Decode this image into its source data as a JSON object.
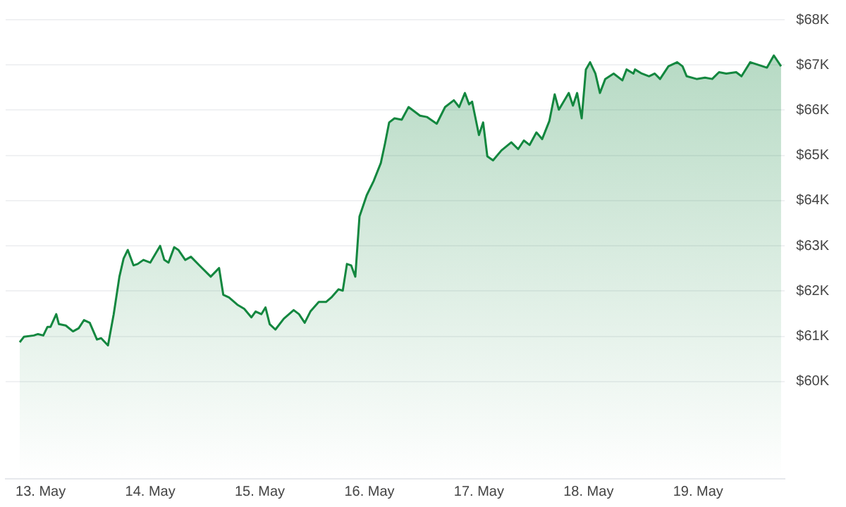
{
  "chart_data": {
    "type": "area",
    "grid": "y",
    "legend": false,
    "marker": "none",
    "xlim": [
      "--05-12T16:20",
      "--05-19T19:00"
    ],
    "xticks": [
      {
        "value": "--05-13",
        "label": "13. May"
      },
      {
        "value": "--05-14",
        "label": "14. May"
      },
      {
        "value": "--05-15",
        "label": "15. May"
      },
      {
        "value": "--05-16",
        "label": "16. May"
      },
      {
        "value": "--05-17",
        "label": "17. May"
      },
      {
        "value": "--05-18",
        "label": "18. May"
      },
      {
        "value": "--05-19",
        "label": "19. May"
      }
    ],
    "ylim": [
      57850,
      68000
    ],
    "yticks": [
      {
        "value": 60000,
        "label": "$60K"
      },
      {
        "value": 61000,
        "label": "$61K"
      },
      {
        "value": 62000,
        "label": "$62K"
      },
      {
        "value": 63000,
        "label": "$63K"
      },
      {
        "value": 64000,
        "label": "$64K"
      },
      {
        "value": 65000,
        "label": "$65K"
      },
      {
        "value": 66000,
        "label": "$66K"
      },
      {
        "value": 67000,
        "label": "$67K"
      },
      {
        "value": 68000,
        "label": "$68K"
      }
    ],
    "series": [
      {
        "color": "#13873f",
        "x": [
          "--05-12T19:25",
          "--05-12T20:20",
          "--05-12T22:30",
          "--05-12T23:25",
          "--05-13T00:35",
          "--05-13T01:30",
          "--05-13T02:10",
          "--05-13T03:25",
          "--05-13T04:00",
          "--05-13T05:30",
          "--05-13T07:05",
          "--05-13T08:20",
          "--05-13T09:30",
          "--05-13T10:45",
          "--05-13T12:20",
          "--05-13T13:15",
          "--05-13T14:45",
          "--05-13T16:00",
          "--05-13T17:15",
          "--05-13T18:10",
          "--05-13T19:05",
          "--05-13T20:20",
          "--05-13T21:15",
          "--05-13T22:30",
          "--05-14T00:00",
          "--05-14T02:10",
          "--05-14T03:05",
          "--05-14T04:00",
          "--05-14T05:15",
          "--05-14T06:10",
          "--05-14T07:40",
          "--05-14T08:55",
          "--05-14T10:45",
          "--05-14T13:15",
          "--05-14T15:05",
          "--05-14T16:00",
          "--05-14T17:15",
          "--05-14T19:05",
          "--05-14T20:35",
          "--05-14T22:10",
          "--05-14T23:05",
          "--05-15T00:20",
          "--05-15T01:15",
          "--05-15T02:10",
          "--05-15T03:25",
          "--05-15T05:15",
          "--05-15T07:25",
          "--05-15T08:35",
          "--05-15T09:50",
          "--05-15T11:05",
          "--05-15T12:55",
          "--05-15T14:30",
          "--05-15T15:40",
          "--05-15T17:15",
          "--05-15T18:10",
          "--05-15T19:05",
          "--05-15T20:00",
          "--05-15T20:55",
          "--05-15T21:50",
          "--05-15T23:25",
          "--05-16T00:55",
          "--05-16T02:30",
          "--05-16T03:25",
          "--05-16T04:20",
          "--05-16T05:30",
          "--05-16T07:05",
          "--05-16T08:35",
          "--05-16T11:05",
          "--05-16T12:35",
          "--05-16T14:45",
          "--05-16T16:35",
          "--05-16T18:30",
          "--05-16T19:40",
          "--05-16T20:55",
          "--05-16T21:50",
          "--05-16T22:30",
          "--05-17T00:00",
          "--05-17T00:55",
          "--05-17T01:50",
          "--05-17T03:05",
          "--05-17T04:55",
          "--05-17T07:05",
          "--05-17T08:35",
          "--05-17T09:50",
          "--05-17T11:05",
          "--05-17T12:35",
          "--05-17T13:50",
          "--05-17T15:25",
          "--05-17T16:35",
          "--05-17T17:30",
          "--05-17T19:40",
          "--05-17T20:35",
          "--05-17T21:30",
          "--05-17T22:30",
          "--05-17T23:25",
          "--05-18T00:20",
          "--05-18T01:30",
          "--05-18T02:30",
          "--05-18T03:40",
          "--05-18T05:30",
          "--05-18T07:25",
          "--05-18T08:20",
          "--05-18T09:50",
          "--05-18T10:10",
          "--05-18T11:40",
          "--05-18T13:15",
          "--05-18T14:30",
          "--05-18T15:40",
          "--05-18T17:30",
          "--05-18T19:25",
          "--05-18T20:35",
          "--05-18T21:30",
          "--05-18T23:40",
          "--05-19T01:30",
          "--05-19T03:05",
          "--05-19T04:35",
          "--05-19T06:10",
          "--05-19T08:20",
          "--05-19T09:30",
          "--05-19T11:25",
          "--05-19T15:05",
          "--05-19T16:35",
          "--05-19T18:10"
        ],
        "values": [
          60870,
          60990,
          61020,
          61050,
          61020,
          61210,
          61210,
          61490,
          61270,
          61240,
          61110,
          61180,
          61360,
          61300,
          60930,
          60960,
          60800,
          61490,
          62320,
          62720,
          62910,
          62570,
          62600,
          62690,
          62630,
          63000,
          62690,
          62630,
          62970,
          62910,
          62690,
          62760,
          62570,
          62320,
          62510,
          61920,
          61860,
          61700,
          61610,
          61420,
          61550,
          61490,
          61640,
          61270,
          61150,
          61390,
          61580,
          61490,
          61300,
          61550,
          61760,
          61760,
          61860,
          62040,
          62010,
          62600,
          62570,
          62320,
          63650,
          64120,
          64430,
          64830,
          65260,
          65730,
          65820,
          65790,
          66070,
          65880,
          65850,
          65700,
          66070,
          66220,
          66070,
          66380,
          66130,
          66190,
          65450,
          65730,
          64980,
          64890,
          65110,
          65290,
          65140,
          65330,
          65230,
          65510,
          65360,
          65760,
          66350,
          66010,
          66380,
          66100,
          66380,
          65820,
          66900,
          67060,
          66810,
          66380,
          66690,
          66810,
          66660,
          66900,
          66810,
          66900,
          66810,
          66750,
          66810,
          66690,
          66970,
          67060,
          66970,
          66750,
          66690,
          66720,
          66690,
          66840,
          66810,
          66840,
          66750,
          67060,
          66940,
          67210,
          66970
        ]
      }
    ]
  }
}
